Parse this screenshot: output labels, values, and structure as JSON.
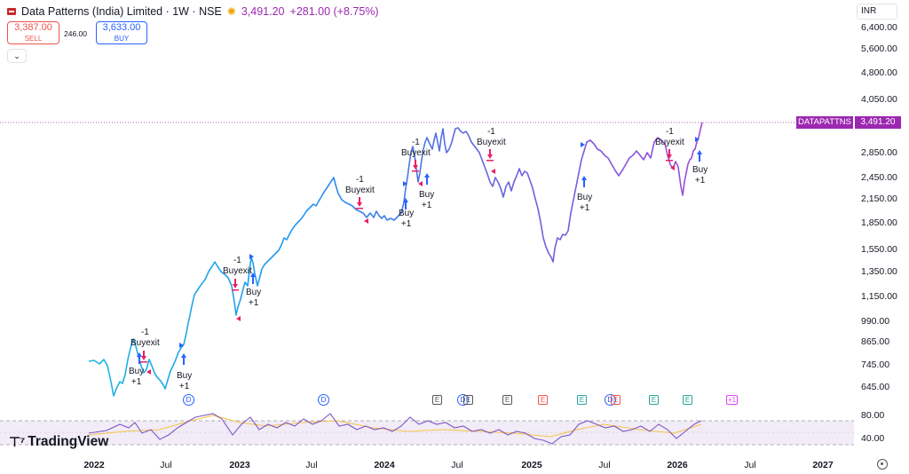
{
  "header": {
    "symbol": "Data Patterns (India) Limited · 1W · NSE",
    "price": "3,491.20",
    "change": "+281.00 (+8.75%)"
  },
  "trade": {
    "sell_price": "3,387.00",
    "sell_label": "SELL",
    "spread": "246.00",
    "buy_price": "3,633.00",
    "buy_label": "BUY"
  },
  "currency": "INR",
  "price_ticks": [
    "6,400.00",
    "5,600.00",
    "4,800.00",
    "4,050.00",
    "3,491.20",
    "2,850.00",
    "2,450.00",
    "2,150.00",
    "1,850.00",
    "1,550.00",
    "1,350.00",
    "1,150.00",
    "990.00",
    "865.00",
    "745.00",
    "645.00"
  ],
  "current": {
    "label": "DATAPATTNS",
    "price": "3,491.20"
  },
  "time_ticks": [
    {
      "t": "2022",
      "bold": true
    },
    {
      "t": "Jul",
      "bold": false
    },
    {
      "t": "2023",
      "bold": true
    },
    {
      "t": "Jul",
      "bold": false
    },
    {
      "t": "2024",
      "bold": true
    },
    {
      "t": "Jul",
      "bold": false
    },
    {
      "t": "2025",
      "bold": true
    },
    {
      "t": "Jul",
      "bold": false
    },
    {
      "t": "2026",
      "bold": true
    },
    {
      "t": "Jul",
      "bold": false
    },
    {
      "t": "2027",
      "bold": true
    }
  ],
  "rsi_ticks": [
    "80.00",
    "40.00"
  ],
  "signals": {
    "exit_top": "-1",
    "exit_label": "Buyexit",
    "buy_label": "Buy",
    "buy_qty": "+1"
  },
  "events": {
    "d": "D",
    "e": "E",
    "p": "+1"
  },
  "brand": "TradingView",
  "colors": {
    "line_blue": "#2196f3",
    "line_purple": "#7e57c2",
    "current": "#9c27b0",
    "buy": "#2962ff",
    "exit": "#e91e63",
    "rsi": "#7e57c2",
    "rsi_ma": "#f7c44a"
  },
  "icons": [
    "flag-icon",
    "sun-icon",
    "chevron-down-icon",
    "gear-icon",
    "logo-icon"
  ]
}
